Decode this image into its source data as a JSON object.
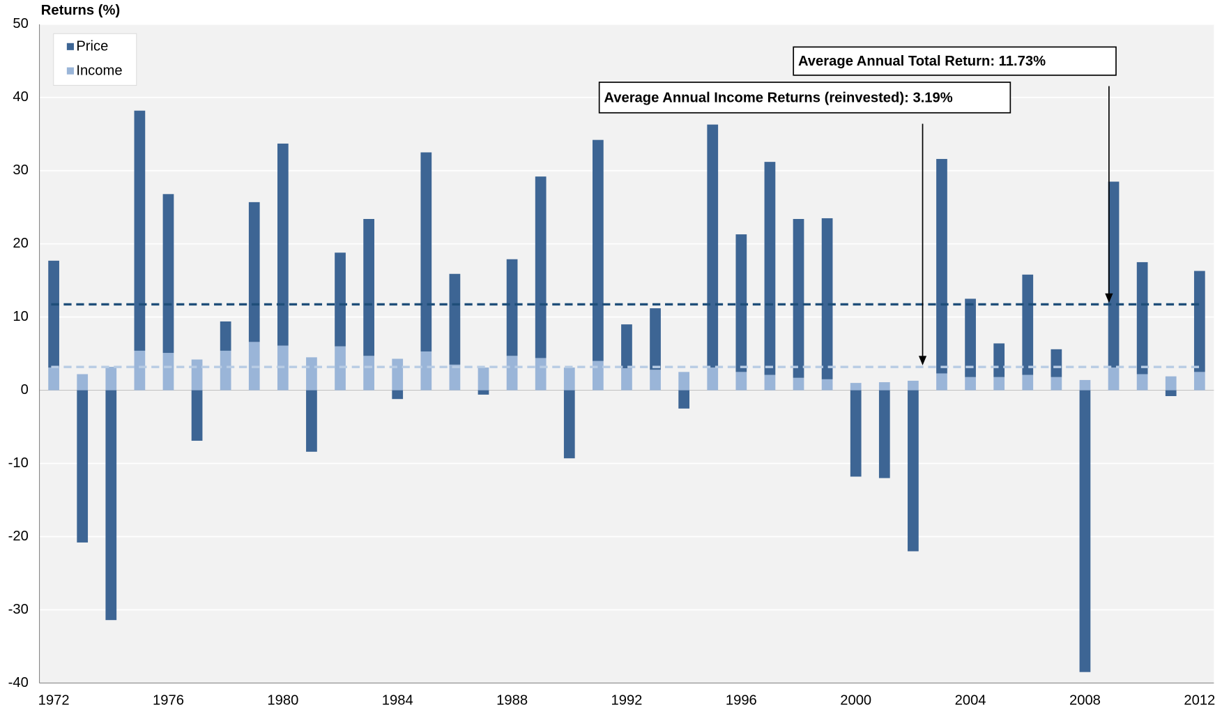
{
  "chart_data": {
    "type": "bar",
    "stacked": true,
    "y_label": "Returns (%)",
    "categories": [
      "1972",
      null,
      null,
      null,
      "1976",
      null,
      null,
      null,
      "1980",
      null,
      null,
      null,
      "1984",
      null,
      null,
      null,
      "1988",
      null,
      null,
      null,
      "1992",
      null,
      null,
      null,
      "1996",
      null,
      null,
      null,
      "2000",
      null,
      null,
      null,
      "2004",
      null,
      null,
      null,
      "2008",
      null,
      null,
      null,
      "2012"
    ],
    "series": [
      {
        "name": "Price",
        "color": "#3d6594",
        "values": [
          14.6,
          -20.8,
          -31.4,
          32.8,
          21.7,
          -6.9,
          4.0,
          19.1,
          27.6,
          -8.4,
          12.8,
          18.7,
          -1.2,
          27.2,
          12.4,
          -0.6,
          13.2,
          24.8,
          -9.3,
          30.2,
          6.0,
          8.4,
          -2.5,
          33.2,
          18.8,
          29.1,
          21.7,
          22.0,
          -11.8,
          -12.0,
          -22.0,
          29.3,
          10.7,
          4.6,
          13.7,
          3.8,
          -38.5,
          25.4,
          15.3,
          -0.8,
          13.8
        ]
      },
      {
        "name": "Income",
        "color": "#9ab5d8",
        "values": [
          3.1,
          2.2,
          3.2,
          5.4,
          5.1,
          4.2,
          5.4,
          6.6,
          6.1,
          4.5,
          6.0,
          4.7,
          4.3,
          5.3,
          3.5,
          3.1,
          4.7,
          4.4,
          3.1,
          4.0,
          3.0,
          2.8,
          2.5,
          3.1,
          2.5,
          2.1,
          1.7,
          1.5,
          1.0,
          1.1,
          1.3,
          2.3,
          1.8,
          1.8,
          2.1,
          1.8,
          1.4,
          3.1,
          2.2,
          1.9,
          2.5
        ]
      }
    ],
    "reference_lines": [
      {
        "value": 11.73,
        "color": "#1f4e79",
        "label": "Average Annual Total Return: 11.73%"
      },
      {
        "value": 3.19,
        "color": "#b8cce4",
        "label": "Average Annual Income Returns (reinvested): 3.19%"
      }
    ],
    "ylim": [
      -40,
      50
    ],
    "yticks": [
      -40,
      -30,
      -20,
      -10,
      0,
      10,
      20,
      30,
      40,
      50
    ],
    "grid": true,
    "legend": "upper left"
  }
}
